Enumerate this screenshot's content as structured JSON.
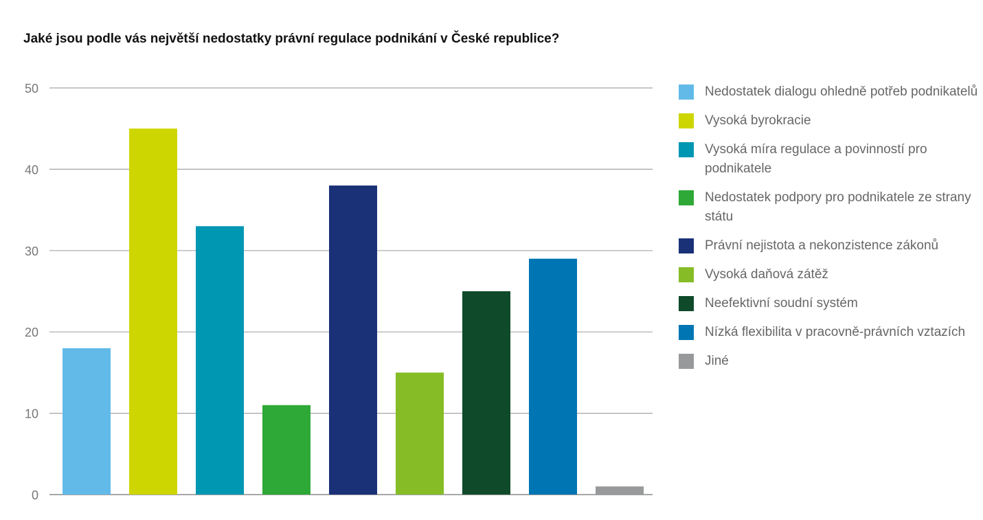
{
  "chart_data": {
    "type": "bar",
    "title": "Jaké jsou podle vás největší nedostatky právní regulace podnikání v České republice?",
    "xlabel": "",
    "ylabel": "",
    "ylim": [
      0,
      50
    ],
    "yticks": [
      0,
      10,
      20,
      30,
      40,
      50
    ],
    "grid": true,
    "legend_position": "right",
    "categories": [
      "Nedostatek dialogu ohledně potřeb podnikatelů",
      "Vysoká byrokracie",
      "Vysoká míra regulace a povinností pro podnikatele",
      "Nedostatek podpory pro podnikatele ze strany státu",
      "Právní nejistota a nekonzistence zákonů",
      "Vysoká daňová zátěž",
      "Neefektivní soudní systém",
      "Nízká flexibilita v pracovně-právních vztazích",
      "Jiné"
    ],
    "values": [
      18,
      45,
      33,
      11,
      38,
      15,
      25,
      29,
      1
    ],
    "colors": [
      "#62bae9",
      "#cdd600",
      "#0097b3",
      "#2ea836",
      "#1a3178",
      "#86bc25",
      "#0f4a2a",
      "#0075b3",
      "#97999b"
    ]
  }
}
